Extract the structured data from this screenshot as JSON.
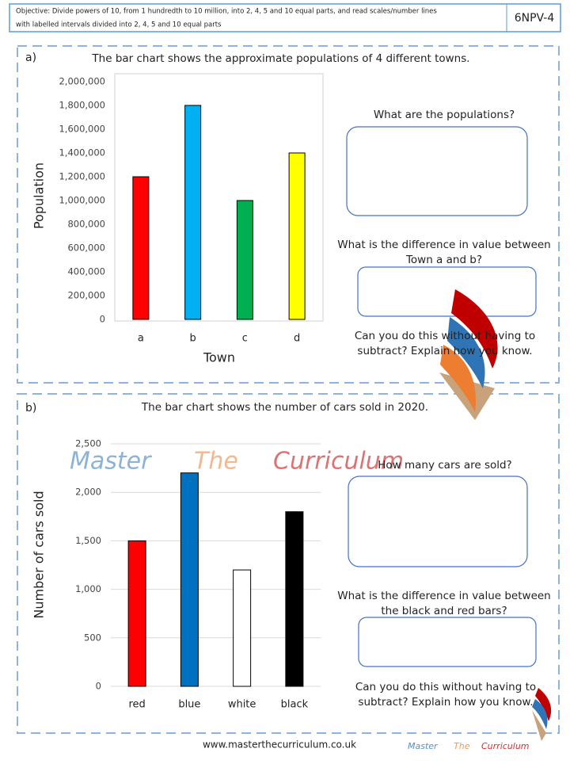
{
  "header": {
    "objective": [
      "Objective:  Divide powers of 10, from 1 hundredth to 10 million, into 2, 4, 5 and 10 equal parts, and read scales/number lines",
      "with labelled intervals divided into 2, 4, 5 and 10 equal parts"
    ],
    "code": "6NPV-4"
  },
  "sections": [
    {
      "label": "a)",
      "questions": [
        [
          "What are the populations?"
        ],
        [
          "What is the difference in value between",
          "Town a and b?"
        ],
        [
          "Can you do this without having to",
          "subtract? Explain how you know."
        ]
      ]
    },
    {
      "label": "b)",
      "questions": [
        [
          "How many cars are sold?"
        ],
        [
          "What is the difference in value between",
          "the black and red bars?"
        ],
        [
          "Can you do this without having to",
          "subtract? Explain how you know."
        ]
      ]
    }
  ],
  "chart_data": [
    {
      "type": "bar",
      "title": "The bar chart shows the approximate populations of 4 different towns.",
      "categories": [
        "a",
        "b",
        "c",
        "d"
      ],
      "values": [
        1200000,
        1800000,
        1000000,
        1400000
      ],
      "colors": [
        "#ff0000",
        "#00b0f0",
        "#00b050",
        "#ffff00"
      ],
      "x_label": "Town",
      "y_label": "Population",
      "ylim": [
        0,
        2000000
      ],
      "yticks": [
        0,
        {
          "value": 200000,
          "label": "200,000"
        },
        {
          "value": 400000,
          "label": "400,000"
        },
        {
          "value": 600000,
          "label": "600,000"
        },
        {
          "value": 800000,
          "label": "800,000"
        },
        {
          "value": 1000000,
          "label": "1,000,000"
        },
        {
          "value": 1200000,
          "label": "1,200,000"
        },
        {
          "value": 1400000,
          "label": "1,400,000"
        },
        {
          "value": 1600000,
          "label": "1,600,000"
        },
        {
          "value": 1800000,
          "label": "1,800,000"
        },
        {
          "value": 2000000,
          "label": "2,000,000"
        }
      ],
      "grid": false
    },
    {
      "type": "bar",
      "title": "The bar chart shows the number of cars sold in 2020.",
      "categories": [
        "red",
        "blue",
        "white",
        "black"
      ],
      "values": [
        1500,
        2200,
        1200,
        1800
      ],
      "colors": [
        "#ff0000",
        "#0070c0",
        "#ffffff",
        "#000000"
      ],
      "y_label": "Number of cars sold",
      "ylim": [
        0,
        2500
      ],
      "yticks": [
        0,
        500,
        {
          "value": 1000,
          "label": "1,000"
        },
        {
          "value": 1500,
          "label": "1,500"
        },
        {
          "value": 2000,
          "label": "2,000"
        },
        {
          "value": 2500,
          "label": "2,500"
        }
      ],
      "grid": true
    }
  ],
  "watermark": [
    "Master",
    "The",
    "Curriculum"
  ],
  "footer": {
    "url": "www.masterthecurriculum.co.uk"
  }
}
